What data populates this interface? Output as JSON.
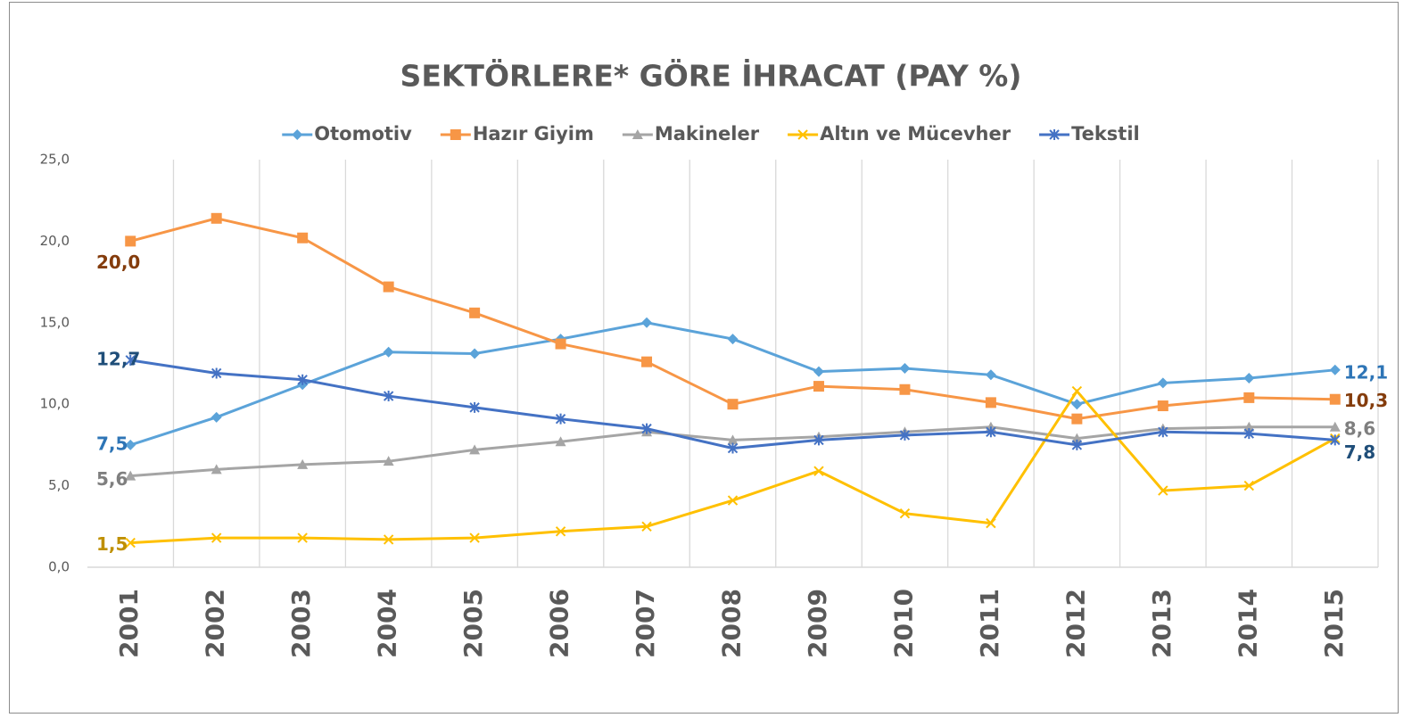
{
  "chart_data": {
    "type": "line",
    "title": "SEKTÖRLERE* GÖRE İHRACAT (PAY %)",
    "categories": [
      "2001",
      "2002",
      "2003",
      "2004",
      "2005",
      "2006",
      "2007",
      "2008",
      "2009",
      "2010",
      "2011",
      "2012",
      "2013",
      "2014",
      "2015"
    ],
    "ylim": [
      0,
      25
    ],
    "yticks": [
      {
        "value": 0,
        "label": "0,0"
      },
      {
        "value": 5,
        "label": "5,0"
      },
      {
        "value": 10,
        "label": "10,0"
      },
      {
        "value": 15,
        "label": "15,0"
      },
      {
        "value": 20,
        "label": "20,0"
      },
      {
        "value": 25,
        "label": "25,0"
      }
    ],
    "grid": true,
    "legend": "top",
    "series": [
      {
        "name": "Otomotiv",
        "color": "#5ba3d9",
        "label_color": "#2e75b6",
        "marker": "diamond",
        "values": [
          7.5,
          9.2,
          11.2,
          13.2,
          13.1,
          14.0,
          15.0,
          14.0,
          12.0,
          12.2,
          11.8,
          10.0,
          11.3,
          11.6,
          12.1
        ],
        "value_labels": [
          "7,5",
          null,
          null,
          null,
          null,
          null,
          null,
          null,
          null,
          null,
          null,
          null,
          null,
          null,
          "12,1"
        ]
      },
      {
        "name": "Hazır Giyim",
        "color": "#f79646",
        "label_color": "#843c0c",
        "marker": "square",
        "values": [
          20.0,
          21.4,
          20.2,
          17.2,
          15.6,
          13.7,
          12.6,
          10.0,
          11.1,
          10.9,
          10.1,
          9.1,
          9.9,
          10.4,
          10.3
        ],
        "value_labels": [
          "20,0",
          null,
          null,
          null,
          null,
          null,
          null,
          null,
          null,
          null,
          null,
          null,
          null,
          null,
          "10,3"
        ]
      },
      {
        "name": "Makineler",
        "color": "#a5a5a5",
        "label_color": "#7f7f7f",
        "marker": "triangle",
        "values": [
          5.6,
          6.0,
          6.3,
          6.5,
          7.2,
          7.7,
          8.3,
          7.8,
          8.0,
          8.3,
          8.6,
          7.9,
          8.5,
          8.6,
          8.6
        ],
        "value_labels": [
          "5,6",
          null,
          null,
          null,
          null,
          null,
          null,
          null,
          null,
          null,
          null,
          null,
          null,
          null,
          "8,6"
        ]
      },
      {
        "name": "Altın ve Mücevher",
        "color": "#ffc000",
        "label_color": "#bf9000",
        "marker": "x",
        "values": [
          1.5,
          1.8,
          1.8,
          1.7,
          1.8,
          2.2,
          2.5,
          4.1,
          5.9,
          3.3,
          2.7,
          10.8,
          4.7,
          5.0,
          7.9
        ],
        "value_labels": [
          "1,5",
          null,
          null,
          null,
          null,
          null,
          null,
          null,
          null,
          null,
          null,
          null,
          null,
          null,
          null
        ]
      },
      {
        "name": "Tekstil",
        "color": "#4472c4",
        "label_color": "#1f4e79",
        "marker": "star",
        "values": [
          12.7,
          11.9,
          11.5,
          10.5,
          9.8,
          9.1,
          8.5,
          7.3,
          7.8,
          8.1,
          8.3,
          7.5,
          8.3,
          8.2,
          7.8
        ],
        "value_labels": [
          "12,7",
          null,
          null,
          null,
          null,
          null,
          null,
          null,
          null,
          null,
          null,
          null,
          null,
          null,
          "7,8"
        ]
      }
    ]
  }
}
